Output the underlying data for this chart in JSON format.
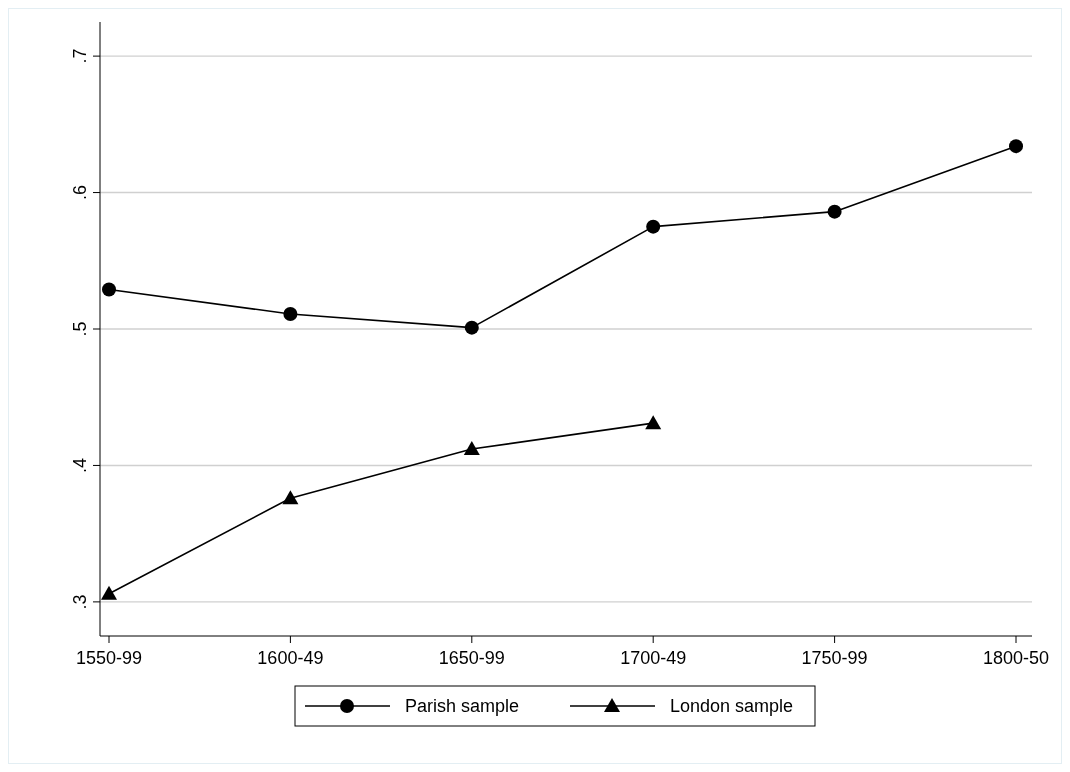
{
  "chart_data": {
    "type": "line",
    "categories": [
      "1550-99",
      "1600-49",
      "1650-99",
      "1700-49",
      "1750-99",
      "1800-50"
    ],
    "series": [
      {
        "name": "Parish sample",
        "color": "#000000",
        "marker": "circle",
        "values": [
          0.529,
          0.511,
          0.501,
          0.575,
          0.586,
          0.634
        ]
      },
      {
        "name": "London sample",
        "color": "#000000",
        "marker": "triangle",
        "values": [
          0.306,
          0.376,
          0.412,
          0.431,
          null,
          null
        ]
      }
    ],
    "ylim": [
      0.275,
      0.725
    ],
    "yticks": [
      {
        "value": 0.3,
        "label": ".3"
      },
      {
        "value": 0.4,
        "label": ".4"
      },
      {
        "value": 0.5,
        "label": ".5"
      },
      {
        "value": 0.6,
        "label": ".6"
      },
      {
        "value": 0.7,
        "label": ".7"
      }
    ],
    "grid": "y",
    "legend": "bottom",
    "line_style": "solid"
  }
}
